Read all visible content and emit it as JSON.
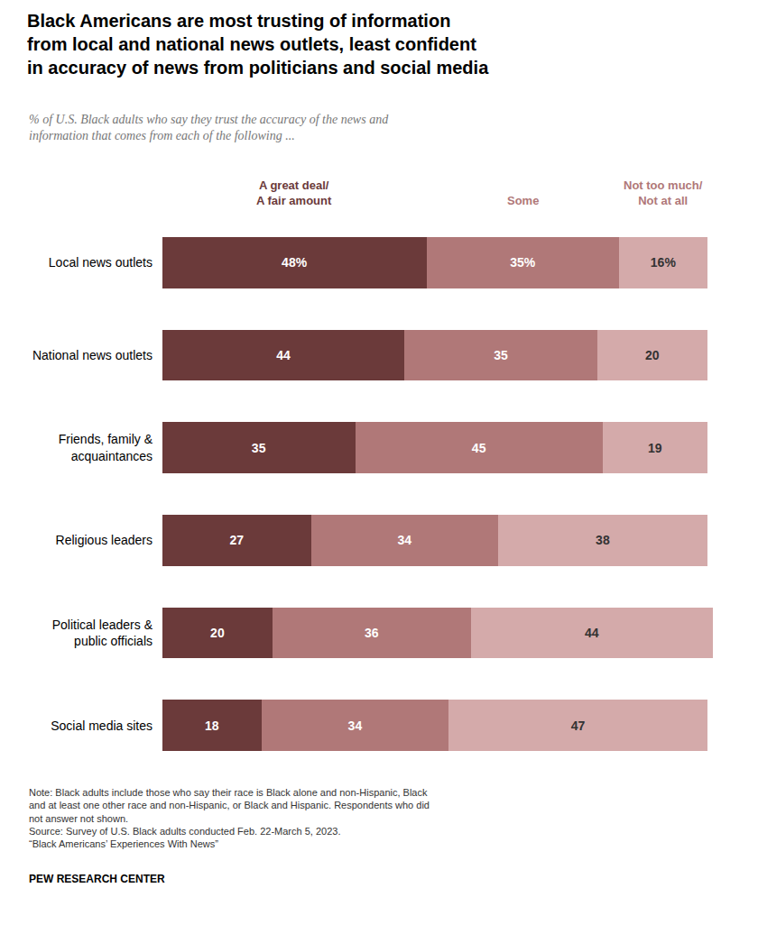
{
  "chart_data": {
    "type": "bar",
    "orientation": "horizontal",
    "stacked": true,
    "title": "Black Americans are most trusting of information\nfrom local and national news outlets, least confident\nin accuracy of news from politicians and social media",
    "subtitle": "% of U.S. Black adults who say they trust the accuracy of the news and\ninformation that comes from each of the following ...",
    "categories": [
      "Local news outlets",
      "National news outlets",
      "Friends, family &\nacquaintances",
      "Religious leaders",
      "Political leaders &\npublic officials",
      "Social media sites"
    ],
    "series": [
      {
        "name": "A great deal/\nA fair amount",
        "color": "#6b3a3a",
        "values": [
          48,
          44,
          35,
          27,
          20,
          18
        ],
        "value_labels": [
          "48%",
          "44",
          "35",
          "27",
          "20",
          "18"
        ]
      },
      {
        "name": "Some",
        "color": "#b07878",
        "values": [
          35,
          35,
          45,
          34,
          36,
          34
        ],
        "value_labels": [
          "35%",
          "35",
          "45",
          "34",
          "36",
          "34"
        ]
      },
      {
        "name": "Not too much/\nNot at all",
        "color": "#d4aaaa",
        "values": [
          16,
          20,
          19,
          38,
          44,
          47
        ],
        "value_labels": [
          "16%",
          "20",
          "19",
          "38",
          "44",
          "47"
        ]
      }
    ],
    "xlim": [
      0,
      100
    ],
    "data_labels": true,
    "tick_labels": "y",
    "grid": false,
    "note": "Note: Black adults include those who say their race is Black alone and non-Hispanic, Black\nand at least one other race and non-Hispanic, or Black and Hispanic. Respondents who did\nnot answer not shown.\nSource: Survey of U.S. Black adults conducted Feb. 22-March 5, 2023.\n“Black Americans’ Experiences With News”",
    "source": "PEW RESEARCH CENTER"
  }
}
